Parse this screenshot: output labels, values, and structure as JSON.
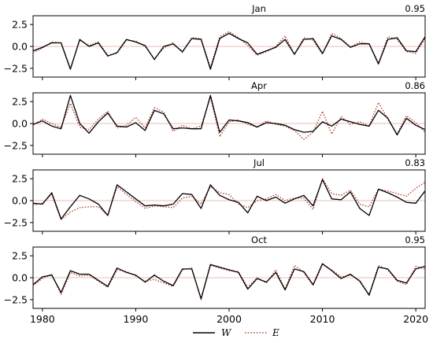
{
  "chart_data": {
    "type": "line",
    "x_label_ticks": [
      "1980",
      "1990",
      "2000",
      "2010",
      "2020"
    ],
    "y_ticks": [
      "2.5",
      "0.0",
      "−2.5"
    ],
    "ylim": [
      -3.5,
      3.5
    ],
    "xlim": [
      1979,
      2021
    ],
    "grid": false,
    "zero_reference_line": true,
    "legend_position": "bottom-center",
    "legend": [
      {
        "label": "W",
        "color": "#000000",
        "style": "solid"
      },
      {
        "label": "E",
        "color": "#b5432f",
        "style": "dotted"
      }
    ],
    "years": [
      1979,
      1980,
      1981,
      1982,
      1983,
      1984,
      1985,
      1986,
      1987,
      1988,
      1989,
      1990,
      1991,
      1992,
      1993,
      1994,
      1995,
      1996,
      1997,
      1998,
      1999,
      2000,
      2001,
      2002,
      2003,
      2004,
      2005,
      2006,
      2007,
      2008,
      2009,
      2010,
      2011,
      2012,
      2013,
      2014,
      2015,
      2016,
      2017,
      2018,
      2019,
      2020,
      2021
    ],
    "panels": [
      {
        "title": "Jan",
        "corr": "0.95",
        "W": [
          -0.5,
          -0.1,
          0.4,
          0.4,
          -2.6,
          0.8,
          0.0,
          0.4,
          -1.1,
          -0.7,
          0.8,
          0.5,
          0.1,
          -1.5,
          0.0,
          0.3,
          -0.6,
          0.9,
          0.8,
          -2.6,
          0.9,
          1.5,
          0.9,
          0.4,
          -0.9,
          -0.5,
          -0.1,
          0.8,
          -0.9,
          0.8,
          0.9,
          -0.8,
          1.2,
          0.8,
          -0.1,
          0.3,
          0.3,
          -2.0,
          0.8,
          1.0,
          -0.5,
          -0.6,
          1.1
        ],
        "E": [
          -0.7,
          -0.2,
          0.5,
          0.4,
          -2.5,
          0.7,
          0.1,
          0.5,
          -1.0,
          -0.8,
          0.7,
          0.6,
          0.0,
          -1.4,
          -0.2,
          0.4,
          -0.7,
          1.0,
          0.9,
          -2.4,
          1.1,
          1.7,
          1.0,
          0.1,
          -1.0,
          -0.6,
          0.0,
          1.2,
          -0.9,
          1.0,
          0.7,
          -0.9,
          1.5,
          0.9,
          -0.1,
          0.5,
          0.3,
          -1.9,
          1.1,
          0.8,
          -0.6,
          -0.8,
          0.9
        ]
      },
      {
        "title": "Apr",
        "corr": "0.86",
        "W": [
          -0.1,
          0.3,
          -0.3,
          -0.6,
          3.2,
          0.0,
          -1.1,
          0.2,
          1.2,
          -0.3,
          -0.4,
          0.1,
          -0.8,
          1.5,
          1.1,
          -0.6,
          -0.5,
          -0.6,
          -0.6,
          3.2,
          -1.0,
          0.4,
          0.3,
          0.1,
          -0.4,
          0.1,
          0.0,
          -0.2,
          -0.7,
          -1.0,
          -0.9,
          0.2,
          -0.3,
          0.5,
          0.2,
          -0.1,
          -0.3,
          1.5,
          0.6,
          -1.3,
          0.6,
          -0.2,
          -0.7
        ],
        "E": [
          -0.2,
          0.5,
          0.0,
          -0.4,
          2.3,
          -0.4,
          -0.7,
          0.5,
          1.4,
          -0.5,
          -0.2,
          0.7,
          -0.5,
          1.8,
          1.3,
          -0.9,
          -0.2,
          -0.6,
          -0.3,
          3.0,
          -1.5,
          0.2,
          0.4,
          -0.1,
          -0.4,
          0.3,
          -0.1,
          -0.3,
          -0.8,
          -1.8,
          -1.0,
          1.4,
          -1.2,
          0.8,
          -0.1,
          0.2,
          -0.3,
          2.4,
          0.5,
          -1.2,
          0.9,
          0.1,
          -1.0
        ]
      },
      {
        "title": "Jul",
        "corr": "0.83",
        "W": [
          -0.3,
          -0.4,
          0.9,
          -2.1,
          -0.7,
          0.6,
          0.2,
          -0.4,
          -1.7,
          1.8,
          1.0,
          0.2,
          -0.6,
          -0.5,
          -0.6,
          -0.4,
          0.8,
          0.7,
          -0.9,
          1.8,
          0.6,
          0.1,
          -0.2,
          -1.4,
          0.5,
          0.0,
          0.4,
          -0.3,
          0.2,
          0.6,
          -0.6,
          2.4,
          0.2,
          0.1,
          1.0,
          -0.9,
          -1.7,
          1.3,
          0.9,
          0.4,
          -0.2,
          -0.3,
          1.1
        ],
        "E": [
          -0.5,
          -0.3,
          0.7,
          -2.2,
          -1.3,
          -0.8,
          -0.7,
          -0.7,
          -1.7,
          1.6,
          0.7,
          -0.1,
          -0.9,
          -0.6,
          -0.7,
          -0.8,
          0.3,
          0.5,
          -0.4,
          1.6,
          0.9,
          0.7,
          -0.4,
          -0.8,
          0.0,
          0.2,
          0.7,
          0.0,
          0.3,
          0.3,
          -1.0,
          2.5,
          0.8,
          0.6,
          1.2,
          -0.4,
          -0.7,
          1.3,
          1.1,
          0.8,
          0.5,
          1.4,
          2.1
        ]
      },
      {
        "title": "Oct",
        "corr": "0.95",
        "W": [
          -0.8,
          0.1,
          0.3,
          -1.7,
          0.8,
          0.4,
          0.4,
          -0.3,
          -1.0,
          1.1,
          0.6,
          0.3,
          -0.5,
          0.3,
          -0.4,
          -0.9,
          1.0,
          1.0,
          -2.4,
          1.5,
          1.2,
          0.9,
          0.6,
          -1.3,
          -0.1,
          -0.5,
          0.6,
          -1.4,
          1.0,
          0.7,
          -0.8,
          1.6,
          0.8,
          -0.1,
          0.4,
          -0.4,
          -2.0,
          1.2,
          1.0,
          -0.3,
          -0.6,
          1.0,
          1.3
        ],
        "E": [
          -0.9,
          -0.1,
          0.4,
          -1.9,
          0.6,
          0.2,
          0.3,
          -0.4,
          -1.1,
          0.9,
          0.7,
          0.2,
          -0.4,
          -0.2,
          -0.6,
          -1.0,
          0.9,
          1.1,
          -2.5,
          1.4,
          1.1,
          0.8,
          0.7,
          -1.1,
          0.0,
          -0.6,
          0.9,
          -1.3,
          1.4,
          0.6,
          -0.9,
          1.5,
          0.9,
          0.1,
          0.3,
          -0.3,
          -1.9,
          1.4,
          0.9,
          -0.4,
          -0.8,
          1.3,
          1.0
        ]
      }
    ]
  }
}
